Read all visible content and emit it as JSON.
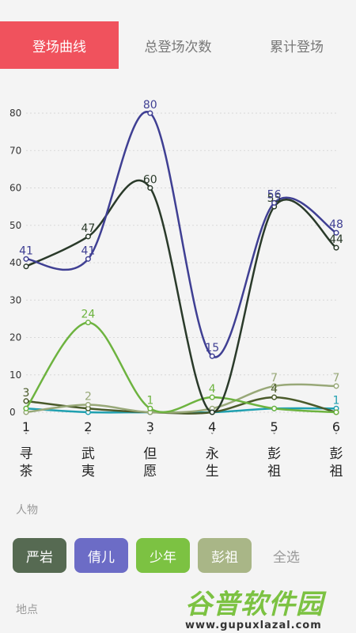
{
  "tabs": [
    {
      "label": "登场曲线",
      "active": true
    },
    {
      "label": "总登场次数",
      "active": false
    },
    {
      "label": "累计登场",
      "active": false
    }
  ],
  "colors": {
    "accent": "#f0525d"
  },
  "chart_data": {
    "type": "line",
    "x": [
      1,
      2,
      3,
      4,
      5,
      6
    ],
    "x_names": [
      [
        "寻",
        "茶"
      ],
      [
        "武",
        "夷"
      ],
      [
        "但",
        "愿"
      ],
      [
        "永",
        "生"
      ],
      [
        "彭",
        "祖"
      ],
      [
        "彭",
        "祖"
      ]
    ],
    "ylim": [
      0,
      80
    ],
    "yticks": [
      0,
      10,
      20,
      30,
      40,
      50,
      60,
      70,
      80
    ],
    "grid": true,
    "series": [
      {
        "name": "严岩",
        "color": "#2a3a2a",
        "values": [
          39,
          47,
          60,
          0,
          55,
          44
        ]
      },
      {
        "name": "倩儿",
        "color": "#3f3f93",
        "values": [
          41,
          41,
          80,
          15,
          56,
          48
        ]
      },
      {
        "name": "少年",
        "color": "#6db33f",
        "values": [
          1,
          24,
          1,
          4,
          1,
          0
        ]
      },
      {
        "name": "彭祖",
        "color": "#98a878",
        "values": [
          0,
          2,
          0,
          1,
          7,
          7
        ]
      },
      {
        "name": "",
        "color": "#4a5a2a",
        "values": [
          3,
          1,
          0,
          0,
          4,
          0
        ]
      },
      {
        "name": "",
        "color": "#20a0b0",
        "values": [
          1,
          0,
          0,
          0,
          1,
          1
        ]
      }
    ],
    "labeled_points": [
      {
        "s": 0,
        "i": 1,
        "t": "47"
      },
      {
        "s": 0,
        "i": 2,
        "t": "60"
      },
      {
        "s": 0,
        "i": 4,
        "t": "55"
      },
      {
        "s": 0,
        "i": 5,
        "t": "44"
      },
      {
        "s": 1,
        "i": 0,
        "t": "41"
      },
      {
        "s": 1,
        "i": 1,
        "t": "41"
      },
      {
        "s": 1,
        "i": 2,
        "t": "80"
      },
      {
        "s": 1,
        "i": 3,
        "t": "15"
      },
      {
        "s": 1,
        "i": 4,
        "t": "56"
      },
      {
        "s": 1,
        "i": 5,
        "t": "48"
      },
      {
        "s": 2,
        "i": 1,
        "t": "24"
      },
      {
        "s": 2,
        "i": 2,
        "t": "1"
      },
      {
        "s": 2,
        "i": 3,
        "t": "4"
      },
      {
        "s": 3,
        "i": 1,
        "t": "2"
      },
      {
        "s": 3,
        "i": 4,
        "t": "7"
      },
      {
        "s": 3,
        "i": 5,
        "t": "7"
      },
      {
        "s": 4,
        "i": 0,
        "t": "3"
      },
      {
        "s": 4,
        "i": 4,
        "t": "4"
      },
      {
        "s": 5,
        "i": 5,
        "t": "1"
      }
    ]
  },
  "sections": {
    "people": "人物",
    "places": "地点"
  },
  "people_chips": [
    {
      "label": "严岩",
      "color": "#566a52"
    },
    {
      "label": "倩儿",
      "color": "#6c6cc6"
    },
    {
      "label": "少年",
      "color": "#7cc242"
    },
    {
      "label": "彭祖",
      "color": "#a9b687"
    }
  ],
  "select_all": "全选",
  "watermark": {
    "text": "谷普软件园",
    "url": "www.gupuxlazal.com"
  }
}
